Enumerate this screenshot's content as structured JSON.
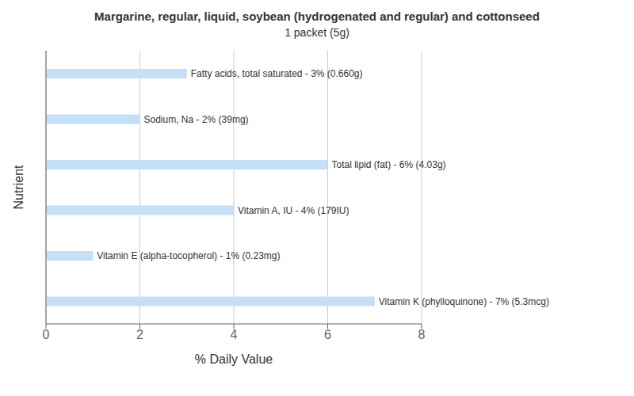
{
  "chart_data": {
    "type": "bar",
    "orientation": "horizontal",
    "title": "Margarine, regular, liquid, soybean (hydrogenated and regular) and cottonseed",
    "subtitle": "1 packet (5g)",
    "xlabel": "% Daily Value",
    "ylabel": "Nutrient",
    "categories": [
      "Fatty acids, total saturated - 3% (0.660g)",
      "Sodium, Na - 2% (39mg)",
      "Total lipid (fat) - 6% (4.03g)",
      "Vitamin A, IU - 4% (179IU)",
      "Vitamin E (alpha-tocopherol) - 1% (0.23mg)",
      "Vitamin K (phylloquinone) - 7% (5.3mcg)"
    ],
    "values": [
      3,
      2,
      6,
      4,
      1,
      7
    ],
    "color": "#c5dff7",
    "xlim": [
      0,
      8
    ],
    "xticks": [
      0,
      2,
      4,
      6,
      8
    ],
    "grid": true,
    "tick_labels": "x"
  }
}
